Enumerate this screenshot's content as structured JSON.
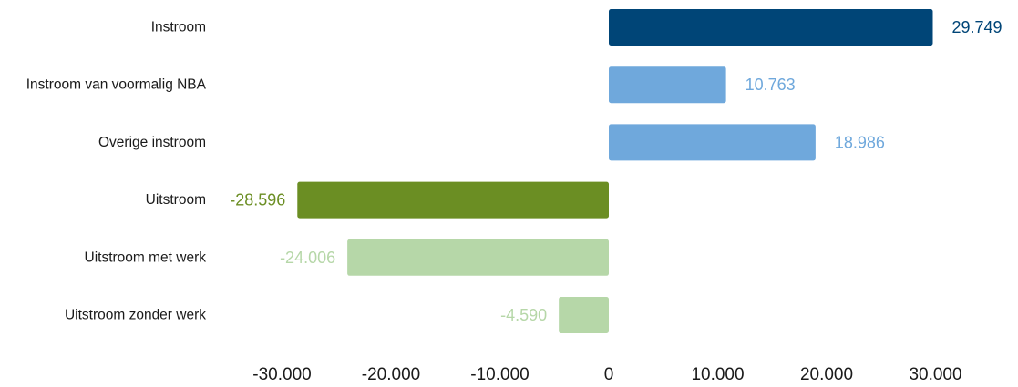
{
  "chart_data": {
    "type": "bar",
    "orientation": "horizontal",
    "categories": [
      "Instroom",
      "Instroom van voormalig NBA",
      "Overige instroom",
      "Uitstroom",
      "Uitstroom met werk",
      "Uitstroom zonder werk"
    ],
    "values": [
      29749,
      10763,
      18986,
      -28596,
      -24006,
      -4590
    ],
    "value_labels": [
      "29.749",
      "10.763",
      "18.986",
      "-28.596",
      "-24.006",
      "-4.590"
    ],
    "colors": [
      "#004577",
      "#6fa8dc",
      "#6fa8dc",
      "#6b8e23",
      "#b6d7a8",
      "#b6d7a8"
    ],
    "xlim": [
      -30000,
      30000
    ],
    "xticks": [
      -30000,
      -20000,
      -10000,
      0,
      10000,
      20000,
      30000
    ],
    "xtick_labels": [
      "-30.000",
      "-20.000",
      "-10.000",
      "0",
      "10.000",
      "20.000",
      "30.000"
    ],
    "title": "",
    "xlabel": "",
    "ylabel": "",
    "grid": false,
    "legend": "none"
  }
}
